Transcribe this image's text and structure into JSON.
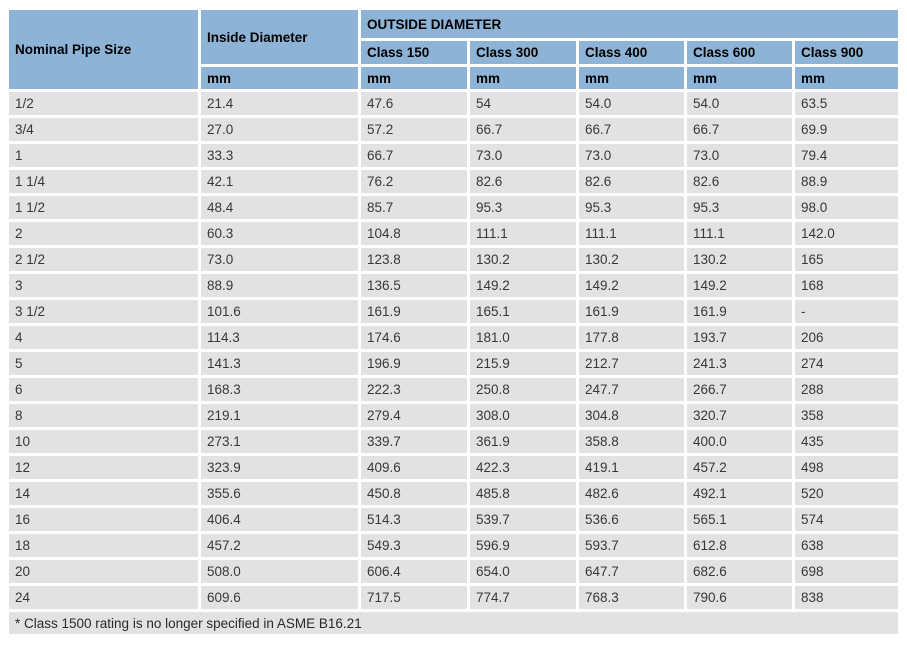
{
  "table": {
    "header": {
      "nominal_pipe_size": "Nominal Pipe Size",
      "inside_diameter": "Inside Diameter",
      "outside_diameter": "OUTSIDE DIAMETER",
      "classes": [
        "Class 150",
        "Class 300",
        "Class 400",
        "Class 600",
        "Class 900"
      ],
      "unit": "mm"
    },
    "rows": [
      [
        "1/2",
        "21.4",
        "47.6",
        "54",
        "54.0",
        "54.0",
        "63.5"
      ],
      [
        "3/4",
        "27.0",
        "57.2",
        "66.7",
        "66.7",
        "66.7",
        "69.9"
      ],
      [
        "1",
        "33.3",
        "66.7",
        "73.0",
        "73.0",
        "73.0",
        "79.4"
      ],
      [
        "1 1/4",
        "42.1",
        "76.2",
        "82.6",
        "82.6",
        "82.6",
        "88.9"
      ],
      [
        "1 1/2",
        "48.4",
        "85.7",
        "95.3",
        "95.3",
        "95.3",
        "98.0"
      ],
      [
        "2",
        "60.3",
        "104.8",
        "111.1",
        "111.1",
        "111.1",
        "142.0"
      ],
      [
        "2 1/2",
        "73.0",
        "123.8",
        "130.2",
        "130.2",
        "130.2",
        "165"
      ],
      [
        "3",
        "88.9",
        "136.5",
        "149.2",
        "149.2",
        "149.2",
        "168"
      ],
      [
        "3 1/2",
        "101.6",
        "161.9",
        "165.1",
        "161.9",
        "161.9",
        "-"
      ],
      [
        "4",
        "114.3",
        "174.6",
        "181.0",
        "177.8",
        "193.7",
        "206"
      ],
      [
        "5",
        "141.3",
        "196.9",
        "215.9",
        "212.7",
        "241.3",
        "274"
      ],
      [
        "6",
        "168.3",
        "222.3",
        "250.8",
        "247.7",
        "266.7",
        "288"
      ],
      [
        "8",
        "219.1",
        "279.4",
        "308.0",
        "304.8",
        "320.7",
        "358"
      ],
      [
        "10",
        "273.1",
        "339.7",
        "361.9",
        "358.8",
        "400.0",
        "435"
      ],
      [
        "12",
        "323.9",
        "409.6",
        "422.3",
        "419.1",
        "457.2",
        "498"
      ],
      [
        "14",
        "355.6",
        "450.8",
        "485.8",
        "482.6",
        "492.1",
        "520"
      ],
      [
        "16",
        "406.4",
        "514.3",
        "539.7",
        "536.6",
        "565.1",
        "574"
      ],
      [
        "18",
        "457.2",
        "549.3",
        "596.9",
        "593.7",
        "612.8",
        "638"
      ],
      [
        "20",
        "508.0",
        "606.4",
        "654.0",
        "647.7",
        "682.6",
        "698"
      ],
      [
        "24",
        "609.6",
        "717.5",
        "774.7",
        "768.3",
        "790.6",
        "838"
      ]
    ],
    "footnote": "* Class 1500 rating is no longer specified in ASME B16.21"
  },
  "colors": {
    "header_bg": "#8db3d6",
    "row_bg": "#e2e2e2",
    "gap": "#ffffff",
    "header_text": "#000000",
    "data_text": "#383838"
  }
}
